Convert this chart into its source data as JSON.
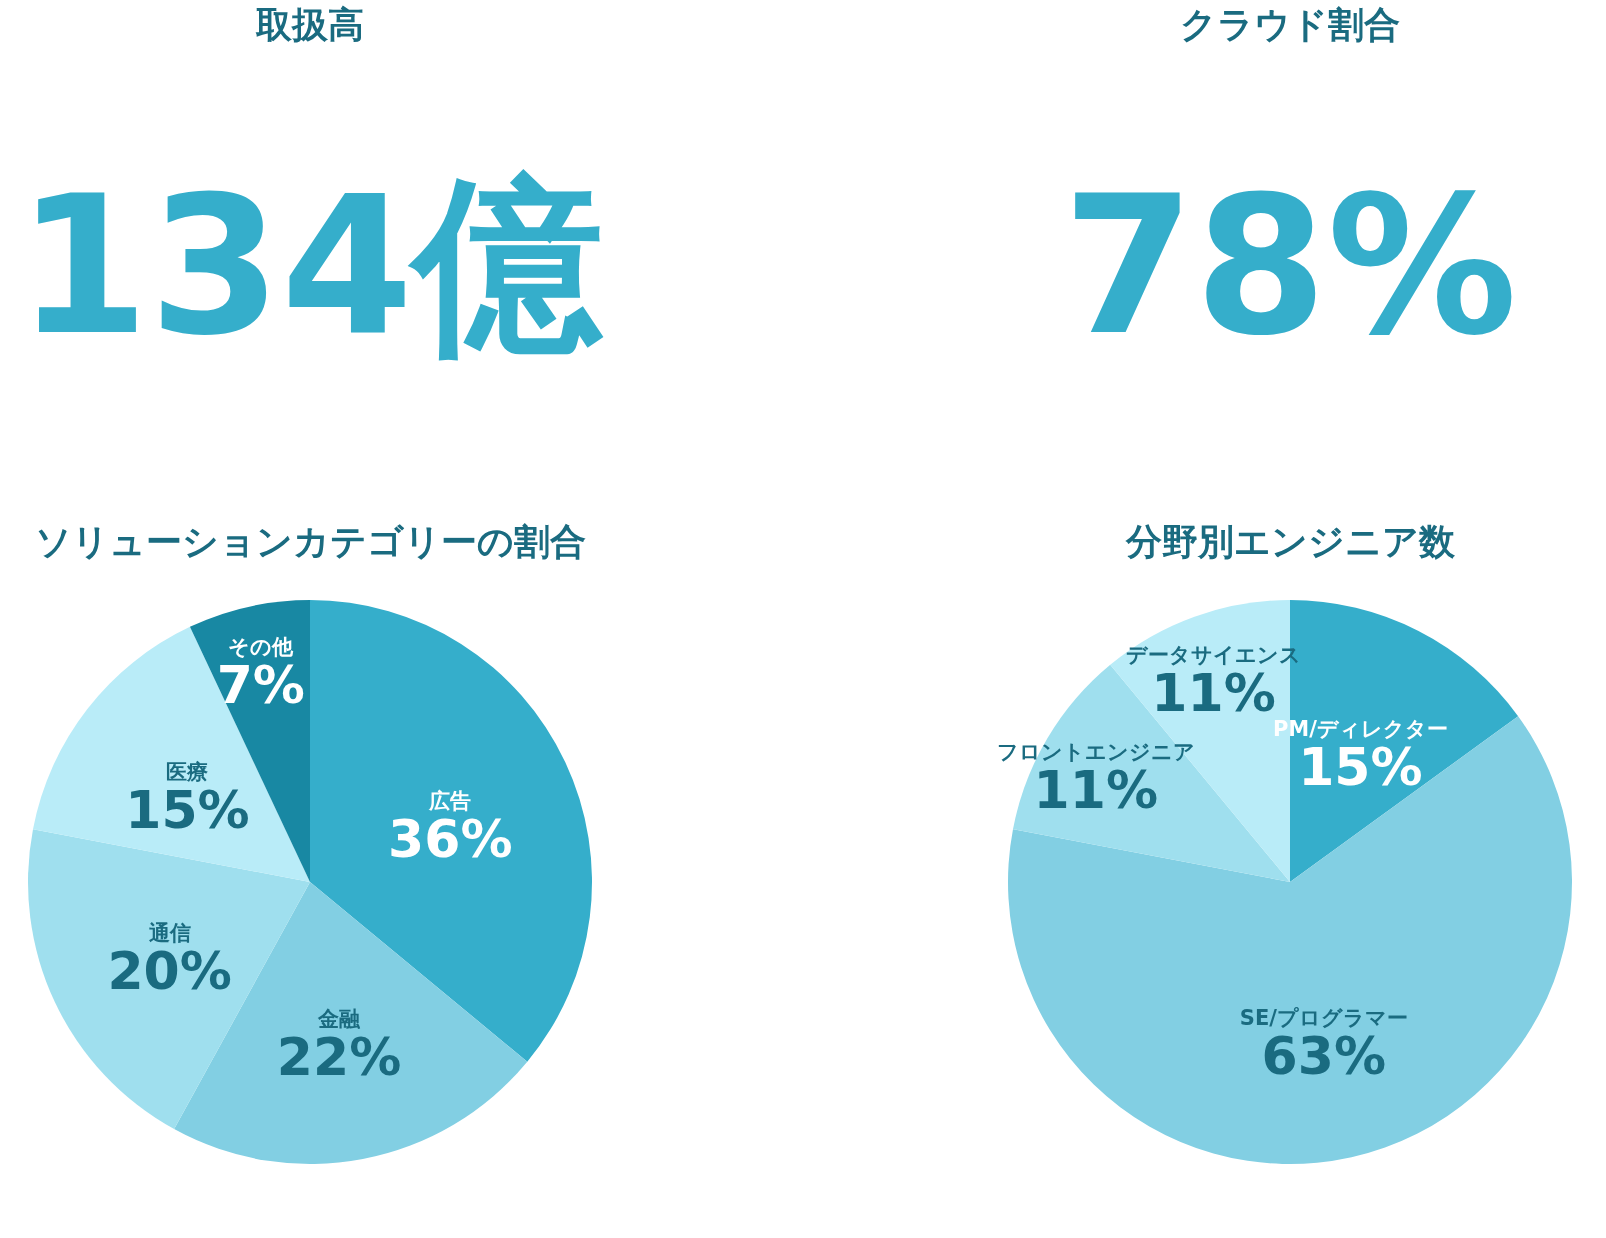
{
  "chart_data": [
    {
      "type": "other",
      "title": "取扱高",
      "annotations": [
        "134億"
      ]
    },
    {
      "type": "other",
      "title": "クラウド割合",
      "annotations": [
        "78%"
      ]
    },
    {
      "type": "pie",
      "title": "ソリューションカテゴリーの割合",
      "categories": [
        "広告",
        "金融",
        "通信",
        "医療",
        "その他"
      ],
      "values": [
        36,
        22,
        20,
        15,
        7
      ],
      "colors": [
        "#35aecb",
        "#82cfe3",
        "#9fdfee",
        "#b9ecf8",
        "#1888a3"
      ],
      "value_labels": [
        "36%",
        "22%",
        "20%",
        "15%",
        "7%"
      ]
    },
    {
      "type": "pie",
      "title": "分野別エンジニア数",
      "categories": [
        "PM/ディレクター",
        "SE/プログラマー",
        "フロントエンジニア",
        "データサイエンス"
      ],
      "values": [
        15,
        63,
        11,
        11
      ],
      "colors": [
        "#35aecb",
        "#82cfe3",
        "#9fdfee",
        "#b9ecf8"
      ],
      "value_labels": [
        "15%",
        "63%",
        "11%",
        "11%"
      ]
    }
  ]
}
